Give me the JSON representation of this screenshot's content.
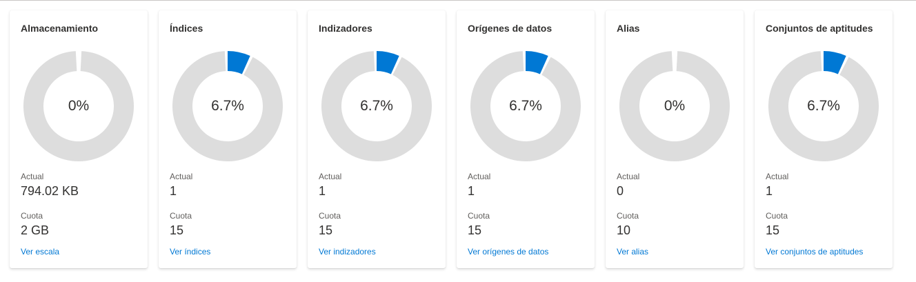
{
  "theme": {
    "accent": "#0078d4",
    "track": "#dddddd",
    "link": "#0078d4"
  },
  "cards": [
    {
      "title": "Almacenamiento",
      "percent": 0,
      "percent_label": "0%",
      "actual_label": "Actual",
      "actual": "794.02 KB",
      "quota_label": "Cuota",
      "quota": "2 GB",
      "link": "Ver escala"
    },
    {
      "title": "Índices",
      "percent": 6.7,
      "percent_label": "6.7%",
      "actual_label": "Actual",
      "actual": "1",
      "quota_label": "Cuota",
      "quota": "15",
      "link": "Ver índices"
    },
    {
      "title": "Indizadores",
      "percent": 6.7,
      "percent_label": "6.7%",
      "actual_label": "Actual",
      "actual": "1",
      "quota_label": "Cuota",
      "quota": "15",
      "link": "Ver indizadores"
    },
    {
      "title": "Orígenes de datos",
      "percent": 6.7,
      "percent_label": "6.7%",
      "actual_label": "Actual",
      "actual": "1",
      "quota_label": "Cuota",
      "quota": "15",
      "link": "Ver orígenes de datos"
    },
    {
      "title": "Alias",
      "percent": 0,
      "percent_label": "0%",
      "actual_label": "Actual",
      "actual": "0",
      "quota_label": "Cuota",
      "quota": "10",
      "link": "Ver alias"
    },
    {
      "title": "Conjuntos de aptitudes",
      "percent": 6.7,
      "percent_label": "6.7%",
      "actual_label": "Actual",
      "actual": "1",
      "quota_label": "Cuota",
      "quota": "15",
      "link": "Ver conjuntos de aptitudes"
    }
  ]
}
